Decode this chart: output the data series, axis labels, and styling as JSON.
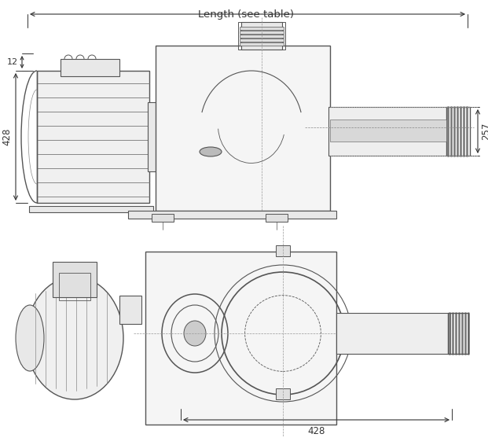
{
  "bg_color": "#ffffff",
  "line_color": "#555555",
  "dim_color": "#333333",
  "title_text": "Length (see table)",
  "dim_428_top": "428",
  "dim_12": "12",
  "dim_257": "257",
  "dim_428_bot": "428",
  "fig_width": 6.21,
  "fig_height": 5.66,
  "dpi": 100
}
